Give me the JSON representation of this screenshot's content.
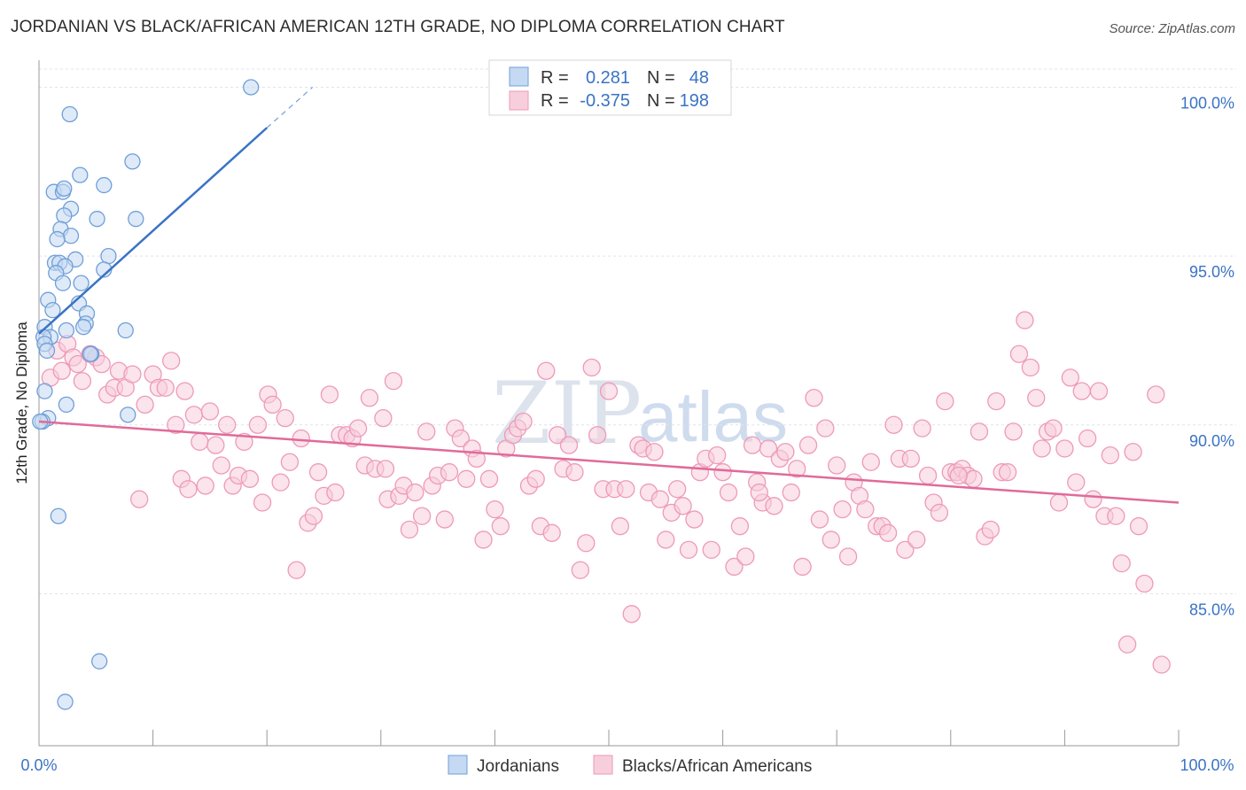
{
  "title": "JORDANIAN VS BLACK/AFRICAN AMERICAN 12TH GRADE, NO DIPLOMA CORRELATION CHART",
  "source": "Source: ZipAtlas.com",
  "watermark": {
    "part1": "ZIP",
    "part2": "atlas"
  },
  "colors": {
    "blue": "#3a73c4",
    "blue_fill": "#c5d9f2",
    "blue_stroke": "#6f9fd8",
    "pink": "#e06b98",
    "pink_fill": "#f7cedc",
    "pink_stroke": "#ee9ab8",
    "grid": "#dfe3ea",
    "axis": "#999999"
  },
  "stats": {
    "rows": [
      {
        "r_label": "R =",
        "r_value": "0.281",
        "n_label": "N =",
        "n_value": "48",
        "series": "blue"
      },
      {
        "r_label": "R =",
        "r_value": "-0.375",
        "n_label": "N =",
        "n_value": "198",
        "series": "pink"
      }
    ]
  },
  "chart_data": {
    "type": "scatter",
    "title": "JORDANIAN VS BLACK/AFRICAN AMERICAN 12TH GRADE, NO DIPLOMA CORRELATION CHART",
    "xlabel": "",
    "ylabel": "12th Grade, No Diploma",
    "xlim": [
      0,
      100
    ],
    "ylim": [
      80.5,
      100.8
    ],
    "x_tick_labels": [
      {
        "value": 0,
        "label": "0.0%"
      },
      {
        "value": 100,
        "label": "100.0%"
      }
    ],
    "y_ticks": [
      {
        "value": 85,
        "label": "85.0%"
      },
      {
        "value": 90,
        "label": "90.0%"
      },
      {
        "value": 95,
        "label": "95.0%"
      },
      {
        "value": 100,
        "label": "100.0%"
      }
    ],
    "legend": [
      "Jordanians",
      "Blacks/African Americans"
    ],
    "series": [
      {
        "name": "Jordanians",
        "color": "blue",
        "trend": {
          "x0": 0,
          "y0": 92.7,
          "x1": 20,
          "y1": 98.8,
          "dash_to_x": 24,
          "dash_to_y": 100.0
        },
        "points": [
          [
            18.6,
            100.0
          ],
          [
            2.7,
            99.2
          ],
          [
            8.2,
            97.8
          ],
          [
            3.6,
            97.4
          ],
          [
            5.7,
            97.1
          ],
          [
            1.3,
            96.9
          ],
          [
            2.1,
            96.9
          ],
          [
            2.2,
            97.0
          ],
          [
            2.8,
            96.4
          ],
          [
            2.2,
            96.2
          ],
          [
            5.1,
            96.1
          ],
          [
            8.5,
            96.1
          ],
          [
            1.9,
            95.8
          ],
          [
            2.8,
            95.6
          ],
          [
            1.6,
            95.5
          ],
          [
            6.1,
            95.0
          ],
          [
            3.2,
            94.9
          ],
          [
            1.4,
            94.8
          ],
          [
            1.8,
            94.8
          ],
          [
            2.3,
            94.7
          ],
          [
            5.7,
            94.6
          ],
          [
            1.5,
            94.5
          ],
          [
            2.1,
            94.2
          ],
          [
            3.7,
            94.2
          ],
          [
            0.8,
            93.7
          ],
          [
            1.2,
            93.4
          ],
          [
            3.5,
            93.6
          ],
          [
            4.2,
            93.3
          ],
          [
            4.1,
            93.0
          ],
          [
            3.9,
            92.9
          ],
          [
            0.5,
            92.9
          ],
          [
            2.4,
            92.8
          ],
          [
            7.6,
            92.8
          ],
          [
            1.0,
            92.6
          ],
          [
            0.4,
            92.6
          ],
          [
            0.5,
            92.4
          ],
          [
            0.7,
            92.2
          ],
          [
            4.6,
            92.1
          ],
          [
            4.5,
            92.1
          ],
          [
            0.5,
            91.0
          ],
          [
            2.4,
            90.6
          ],
          [
            0.8,
            90.2
          ],
          [
            7.8,
            90.3
          ],
          [
            0.3,
            90.1
          ],
          [
            1.7,
            87.3
          ],
          [
            5.3,
            83.0
          ],
          [
            2.3,
            81.8
          ],
          [
            0.1,
            90.1
          ]
        ]
      },
      {
        "name": "Blacks/African Americans",
        "color": "pink",
        "trend": {
          "x0": 0,
          "y0": 90.1,
          "x1": 100,
          "y1": 87.7
        },
        "points": [
          [
            1.0,
            91.4
          ],
          [
            1.6,
            92.2
          ],
          [
            2.0,
            91.6
          ],
          [
            2.5,
            92.4
          ],
          [
            3.0,
            92.0
          ],
          [
            3.4,
            91.8
          ],
          [
            3.8,
            91.3
          ],
          [
            4.5,
            92.1
          ],
          [
            5.0,
            92.0
          ],
          [
            5.5,
            91.8
          ],
          [
            6.0,
            90.9
          ],
          [
            6.6,
            91.1
          ],
          [
            7.0,
            91.6
          ],
          [
            7.6,
            91.1
          ],
          [
            8.2,
            91.5
          ],
          [
            8.8,
            87.8
          ],
          [
            9.3,
            90.6
          ],
          [
            10.0,
            91.5
          ],
          [
            10.5,
            91.1
          ],
          [
            11.1,
            91.1
          ],
          [
            11.6,
            91.9
          ],
          [
            12.0,
            90.0
          ],
          [
            12.5,
            88.4
          ],
          [
            12.8,
            91.0
          ],
          [
            13.1,
            88.1
          ],
          [
            13.6,
            90.3
          ],
          [
            14.1,
            89.5
          ],
          [
            14.6,
            88.2
          ],
          [
            15.0,
            90.4
          ],
          [
            15.5,
            89.4
          ],
          [
            16.0,
            88.8
          ],
          [
            16.5,
            90.0
          ],
          [
            17.0,
            88.2
          ],
          [
            17.5,
            88.5
          ],
          [
            18.0,
            89.5
          ],
          [
            18.5,
            88.4
          ],
          [
            19.2,
            90.0
          ],
          [
            19.6,
            87.7
          ],
          [
            20.1,
            90.9
          ],
          [
            20.5,
            90.6
          ],
          [
            21.2,
            88.3
          ],
          [
            21.6,
            90.2
          ],
          [
            22.0,
            88.9
          ],
          [
            22.6,
            85.7
          ],
          [
            23.0,
            89.6
          ],
          [
            23.6,
            87.1
          ],
          [
            24.1,
            87.3
          ],
          [
            24.5,
            88.6
          ],
          [
            25.0,
            87.9
          ],
          [
            25.5,
            90.9
          ],
          [
            26.0,
            88.0
          ],
          [
            26.4,
            89.7
          ],
          [
            27.0,
            89.7
          ],
          [
            27.5,
            89.6
          ],
          [
            28.0,
            89.9
          ],
          [
            28.6,
            88.8
          ],
          [
            29.0,
            90.8
          ],
          [
            29.5,
            88.7
          ],
          [
            30.2,
            90.2
          ],
          [
            30.6,
            87.8
          ],
          [
            31.1,
            91.3
          ],
          [
            31.6,
            87.9
          ],
          [
            32.0,
            88.2
          ],
          [
            32.5,
            86.9
          ],
          [
            33.0,
            88.0
          ],
          [
            33.6,
            87.3
          ],
          [
            34.0,
            89.8
          ],
          [
            34.5,
            88.2
          ],
          [
            35.0,
            88.5
          ],
          [
            35.6,
            87.2
          ],
          [
            36.0,
            88.6
          ],
          [
            36.5,
            89.9
          ],
          [
            37.0,
            89.6
          ],
          [
            37.5,
            88.4
          ],
          [
            38.0,
            89.3
          ],
          [
            38.4,
            89.0
          ],
          [
            39.0,
            86.6
          ],
          [
            39.5,
            88.4
          ],
          [
            40.0,
            87.5
          ],
          [
            40.5,
            87.0
          ],
          [
            41.0,
            89.3
          ],
          [
            41.6,
            89.7
          ],
          [
            42.0,
            89.9
          ],
          [
            42.5,
            90.1
          ],
          [
            43.0,
            88.2
          ],
          [
            43.6,
            88.4
          ],
          [
            44.0,
            87.0
          ],
          [
            44.5,
            91.6
          ],
          [
            45.0,
            86.8
          ],
          [
            45.5,
            89.7
          ],
          [
            46.0,
            88.7
          ],
          [
            46.5,
            89.4
          ],
          [
            47.0,
            88.6
          ],
          [
            47.5,
            85.7
          ],
          [
            48.0,
            86.5
          ],
          [
            48.5,
            91.7
          ],
          [
            49.0,
            89.7
          ],
          [
            49.5,
            88.1
          ],
          [
            50.0,
            91.0
          ],
          [
            50.5,
            88.1
          ],
          [
            51.0,
            87.0
          ],
          [
            51.5,
            88.1
          ],
          [
            52.0,
            84.4
          ],
          [
            52.6,
            89.4
          ],
          [
            53.0,
            89.3
          ],
          [
            53.5,
            88.0
          ],
          [
            54.0,
            89.2
          ],
          [
            54.5,
            87.8
          ],
          [
            55.0,
            86.6
          ],
          [
            55.5,
            87.4
          ],
          [
            56.0,
            88.1
          ],
          [
            56.5,
            87.6
          ],
          [
            57.0,
            86.3
          ],
          [
            57.5,
            87.2
          ],
          [
            58.0,
            88.6
          ],
          [
            58.5,
            89.0
          ],
          [
            59.0,
            86.3
          ],
          [
            59.5,
            89.1
          ],
          [
            60.0,
            88.6
          ],
          [
            60.5,
            88.0
          ],
          [
            61.0,
            85.8
          ],
          [
            61.5,
            87.0
          ],
          [
            62.0,
            86.1
          ],
          [
            62.6,
            89.4
          ],
          [
            63.0,
            88.3
          ],
          [
            63.5,
            87.7
          ],
          [
            64.0,
            89.3
          ],
          [
            64.5,
            87.6
          ],
          [
            65.0,
            89.0
          ],
          [
            65.5,
            89.2
          ],
          [
            66.0,
            88.0
          ],
          [
            66.5,
            88.7
          ],
          [
            67.0,
            85.8
          ],
          [
            67.5,
            89.4
          ],
          [
            68.0,
            90.8
          ],
          [
            68.5,
            87.2
          ],
          [
            69.0,
            89.9
          ],
          [
            69.5,
            86.6
          ],
          [
            70.0,
            88.8
          ],
          [
            70.5,
            87.5
          ],
          [
            71.0,
            86.1
          ],
          [
            71.5,
            88.3
          ],
          [
            72.0,
            87.9
          ],
          [
            72.5,
            87.5
          ],
          [
            73.0,
            88.9
          ],
          [
            73.5,
            87.0
          ],
          [
            74.0,
            87.0
          ],
          [
            74.5,
            86.8
          ],
          [
            75.0,
            90.0
          ],
          [
            75.5,
            89.0
          ],
          [
            76.0,
            86.3
          ],
          [
            76.5,
            89.0
          ],
          [
            77.0,
            86.6
          ],
          [
            77.5,
            89.9
          ],
          [
            78.0,
            88.5
          ],
          [
            78.5,
            87.7
          ],
          [
            79.0,
            87.4
          ],
          [
            79.5,
            90.7
          ],
          [
            80.0,
            88.6
          ],
          [
            80.5,
            88.6
          ],
          [
            81.0,
            88.7
          ],
          [
            81.5,
            88.5
          ],
          [
            82.0,
            88.4
          ],
          [
            82.5,
            89.8
          ],
          [
            83.0,
            86.7
          ],
          [
            83.5,
            86.9
          ],
          [
            84.0,
            90.7
          ],
          [
            84.5,
            88.6
          ],
          [
            85.0,
            88.6
          ],
          [
            85.5,
            89.8
          ],
          [
            86.0,
            92.1
          ],
          [
            86.5,
            93.1
          ],
          [
            87.0,
            91.7
          ],
          [
            87.5,
            90.8
          ],
          [
            88.0,
            89.3
          ],
          [
            88.5,
            89.8
          ],
          [
            89.0,
            89.9
          ],
          [
            89.5,
            87.7
          ],
          [
            90.0,
            89.3
          ],
          [
            90.5,
            91.4
          ],
          [
            91.0,
            88.3
          ],
          [
            91.5,
            91.0
          ],
          [
            92.0,
            89.6
          ],
          [
            92.5,
            87.8
          ],
          [
            93.0,
            91.0
          ],
          [
            93.5,
            87.3
          ],
          [
            94.0,
            89.1
          ],
          [
            94.5,
            87.3
          ],
          [
            95.0,
            85.9
          ],
          [
            95.5,
            83.5
          ],
          [
            96.0,
            89.2
          ],
          [
            96.5,
            87.0
          ],
          [
            97.0,
            85.3
          ],
          [
            98.0,
            90.9
          ],
          [
            98.5,
            82.9
          ],
          [
            80.7,
            88.5
          ],
          [
            63.2,
            88.0
          ],
          [
            30.4,
            88.7
          ]
        ]
      }
    ]
  }
}
